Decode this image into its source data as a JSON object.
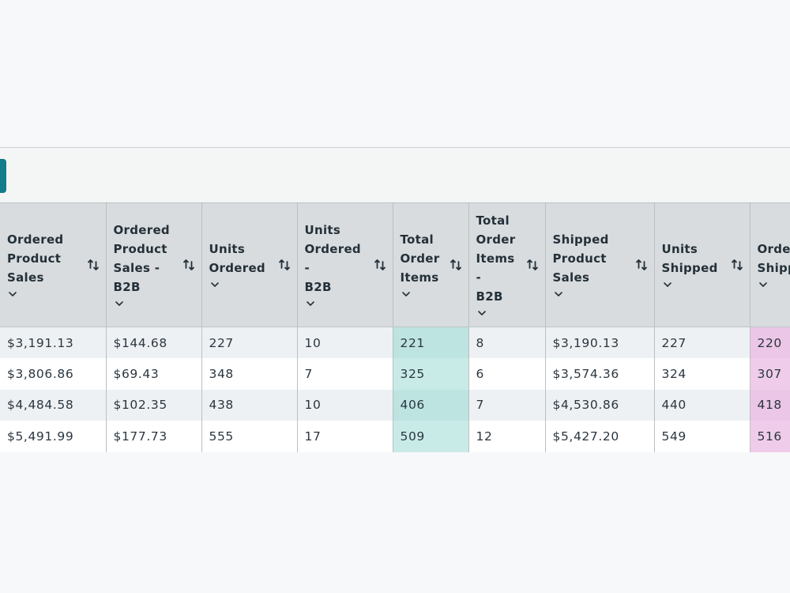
{
  "table": {
    "columns": [
      {
        "label": "Ordered\nProduct\nSales",
        "highlight": ""
      },
      {
        "label": "Ordered\nProduct\nSales -\nB2B",
        "highlight": ""
      },
      {
        "label": "Units\nOrdered",
        "highlight": ""
      },
      {
        "label": "Units\nOrdered -\nB2B",
        "highlight": ""
      },
      {
        "label": "Total\nOrder\nItems",
        "highlight": "teal"
      },
      {
        "label": "Total\nOrder\nItems -\nB2B",
        "highlight": ""
      },
      {
        "label": "Shipped\nProduct\nSales",
        "highlight": ""
      },
      {
        "label": "Units\nShipped",
        "highlight": ""
      },
      {
        "label": "Orders\nShipped",
        "highlight": "pink"
      }
    ],
    "rows": [
      [
        "$3,191.13",
        "$144.68",
        "227",
        "10",
        "221",
        "8",
        "$3,190.13",
        "227",
        "220"
      ],
      [
        "$3,806.86",
        "$69.43",
        "348",
        "7",
        "325",
        "6",
        "$3,574.36",
        "324",
        "307"
      ],
      [
        "$4,484.58",
        "$102.35",
        "438",
        "10",
        "406",
        "7",
        "$4,530.86",
        "440",
        "418"
      ],
      [
        "$5,491.99",
        "$177.73",
        "555",
        "17",
        "509",
        "12",
        "$5,427.20",
        "549",
        "516"
      ]
    ]
  },
  "icons": {
    "sort": "sort-arrows-icon",
    "dropdown": "chevron-down-icon"
  },
  "colors": {
    "accent_button": "#137c8b",
    "header_bg": "#d8dcde",
    "highlight_teal": "#bde4e1",
    "highlight_pink": "#ecc6e6"
  }
}
